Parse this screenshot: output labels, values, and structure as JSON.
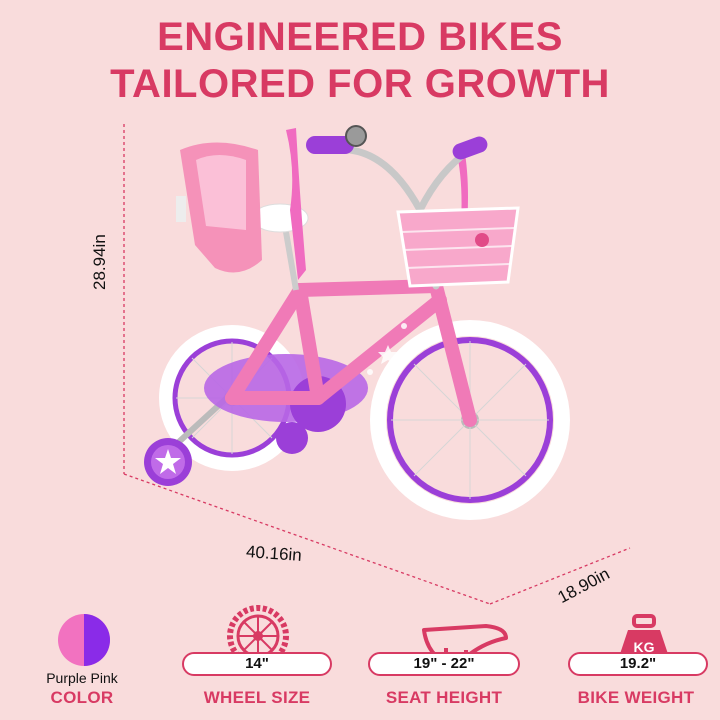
{
  "headline": {
    "line1": "ENGINEERED BIKES",
    "line2": "TAILORED FOR GROWTH"
  },
  "dimensions": {
    "height": "28.94in",
    "length": "40.16in",
    "width": "18.90in"
  },
  "colors": {
    "accent": "#d83a63",
    "background": "#f9dcdc",
    "swatch_pink": "#f272c0",
    "swatch_purple": "#8a2be8"
  },
  "specs": {
    "color": {
      "value": "Purple Pink",
      "label": "COLOR",
      "icon": "color-swatch-icon"
    },
    "wheel": {
      "value": "14\"",
      "label": "WHEEL SIZE",
      "icon": "wheel-icon"
    },
    "seat": {
      "value": "19\" - 22\"",
      "label": "SEAT HEIGHT",
      "icon": "seat-icon"
    },
    "weight": {
      "value": "19.2\"",
      "label": "BIKE WEIGHT",
      "icon": "weight-icon"
    }
  }
}
